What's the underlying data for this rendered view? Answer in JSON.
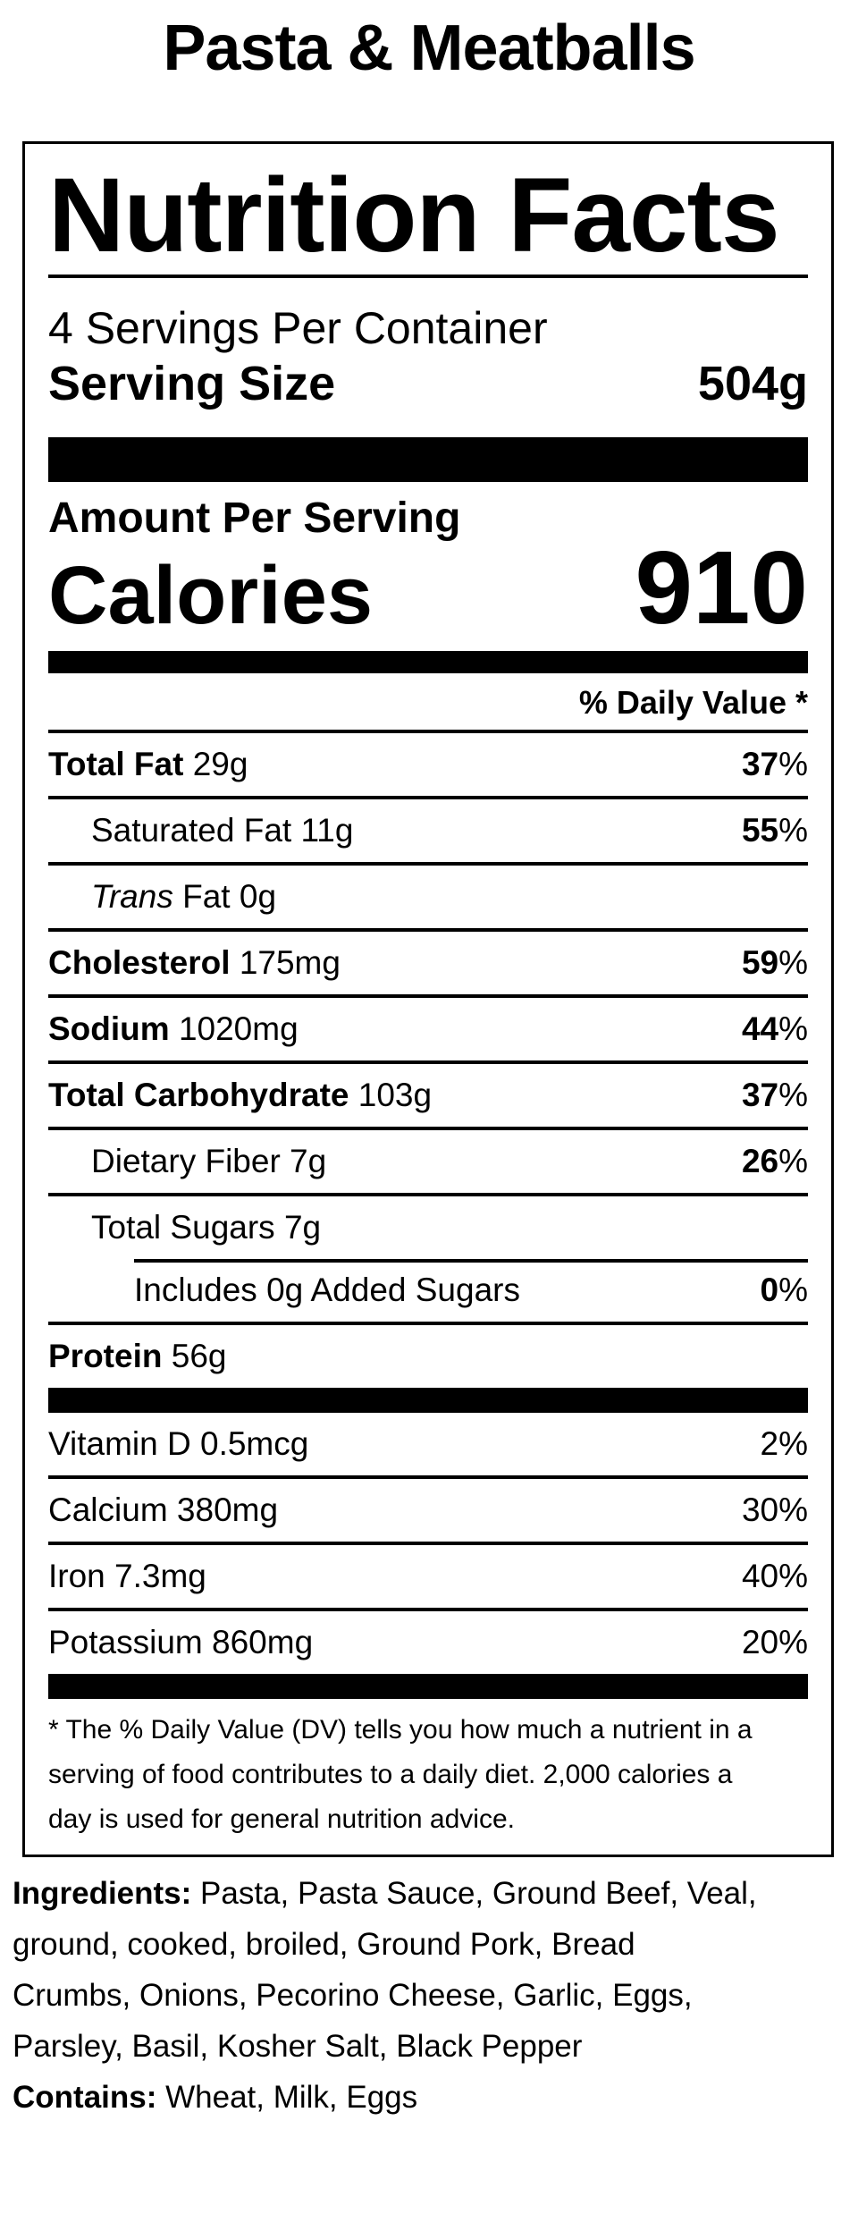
{
  "page": {
    "title": "Pasta & Meatballs"
  },
  "label": {
    "heading": "Nutrition Facts",
    "servings_per_container": "4 Servings Per Container",
    "serving_size_label": "Serving Size",
    "serving_size_value": "504g",
    "amount_per_serving": "Amount Per Serving",
    "calories_label": "Calories",
    "calories_value": "910",
    "daily_value_header": "% Daily Value *",
    "rows": [
      {
        "bold": "Total Fat",
        "rest": " 29g",
        "dv": "37",
        "sign": "%"
      },
      {
        "rest": "Saturated Fat 11g",
        "dv": "55",
        "sign": "%"
      },
      {
        "italic": "Trans",
        "rest": " Fat 0g"
      },
      {
        "bold": "Cholesterol",
        "rest": " 175mg",
        "dv": "59",
        "sign": "%"
      },
      {
        "bold": "Sodium",
        "rest": " 1020mg",
        "dv": "44",
        "sign": "%"
      },
      {
        "bold": "Total Carbohydrate",
        "rest": " 103g",
        "dv": "37",
        "sign": "%"
      },
      {
        "rest": "Dietary Fiber 7g",
        "dv": "26",
        "sign": "%"
      },
      {
        "rest": "Total Sugars 7g"
      },
      {
        "rest": "Includes 0g Added Sugars",
        "dv": "0",
        "sign": "%"
      },
      {
        "bold": "Protein",
        "rest": " 56g"
      }
    ],
    "vitamins": [
      {
        "rest": "Vitamin D 0.5mcg",
        "dv": "2",
        "sign": "%"
      },
      {
        "rest": "Calcium 380mg",
        "dv": "30",
        "sign": "%"
      },
      {
        "rest": "Iron 7.3mg",
        "dv": "40",
        "sign": "%"
      },
      {
        "rest": "Potassium 860mg",
        "dv": "20",
        "sign": "%"
      }
    ],
    "footnote_lines": [
      "* The % Daily Value (DV) tells you how much a nutrient in a",
      "serving of food contributes to a daily diet. 2,000 calories a",
      "day is used for general nutrition advice."
    ]
  },
  "ingredients": {
    "prefix": "Ingredients:",
    "lines": [
      " Pasta, Pasta Sauce, Ground Beef, Veal,",
      "ground, cooked, broiled, Ground Pork, Bread",
      "Crumbs, Onions, Pecorino Cheese, Garlic, Eggs,",
      "Parsley, Basil, Kosher Salt, Black Pepper"
    ],
    "contains_prefix": "Contains:",
    "contains_text": " Wheat, Milk, Eggs"
  }
}
